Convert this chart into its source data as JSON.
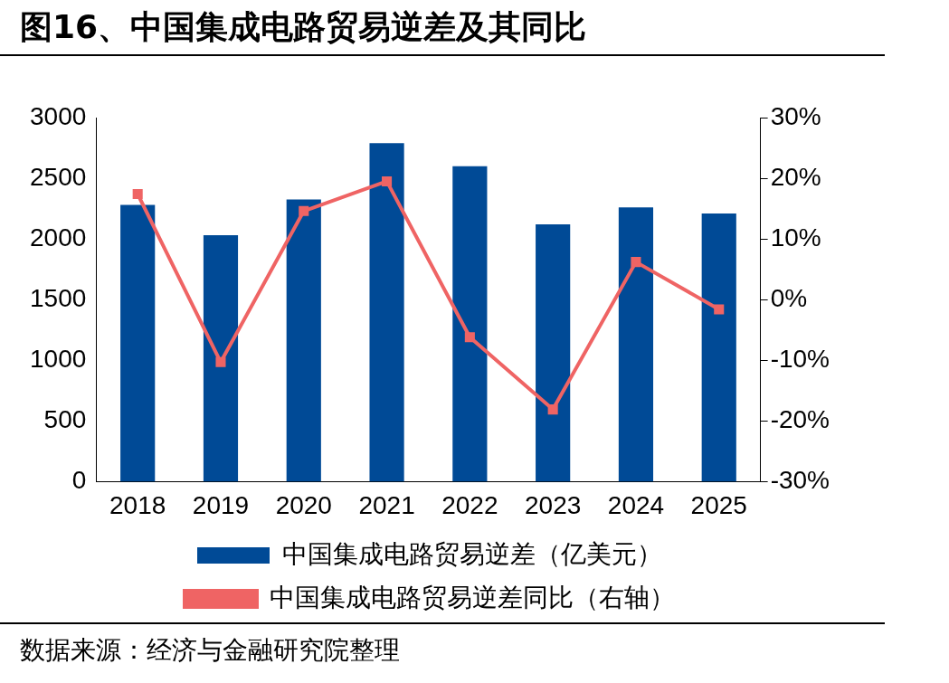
{
  "chart_data": {
    "type": "bar",
    "title": "图16、中国集成电路贸易逆差及其同比",
    "categories": [
      "2018",
      "2019",
      "2020",
      "2021",
      "2022",
      "2023",
      "2024",
      "2025"
    ],
    "series": [
      {
        "name": "中国集成电路贸易逆差（亿美元）",
        "color": "#004a96",
        "values": [
          2280,
          2030,
          2325,
          2790,
          2600,
          2120,
          2260,
          2210
        ]
      },
      {
        "name": "中国集成电路贸易逆差同比（右轴）",
        "type": "line",
        "axis": "y2",
        "color": "#ef6464",
        "values": [
          17.4,
          -10.3,
          14.6,
          19.5,
          -6.2,
          -18.1,
          6.2,
          -1.6
        ]
      }
    ],
    "ylim": [
      0,
      3000
    ],
    "yticks": [
      0,
      500,
      1000,
      1500,
      2000,
      2500,
      3000
    ],
    "y2lim": [
      -30,
      30
    ],
    "y2ticks": [
      {
        "value": -30,
        "label": "-30%"
      },
      {
        "value": -20,
        "label": "-20%"
      },
      {
        "value": -10,
        "label": "-10%"
      },
      {
        "value": 0,
        "label": "0%"
      },
      {
        "value": 10,
        "label": "10%"
      },
      {
        "value": 20,
        "label": "20%"
      },
      {
        "value": 30,
        "label": "30%"
      }
    ],
    "marker": "square",
    "line_style": "solid",
    "grid": false,
    "legend": "bottom",
    "annotations": [
      "数据来源：经济与金融研究院整理"
    ]
  }
}
